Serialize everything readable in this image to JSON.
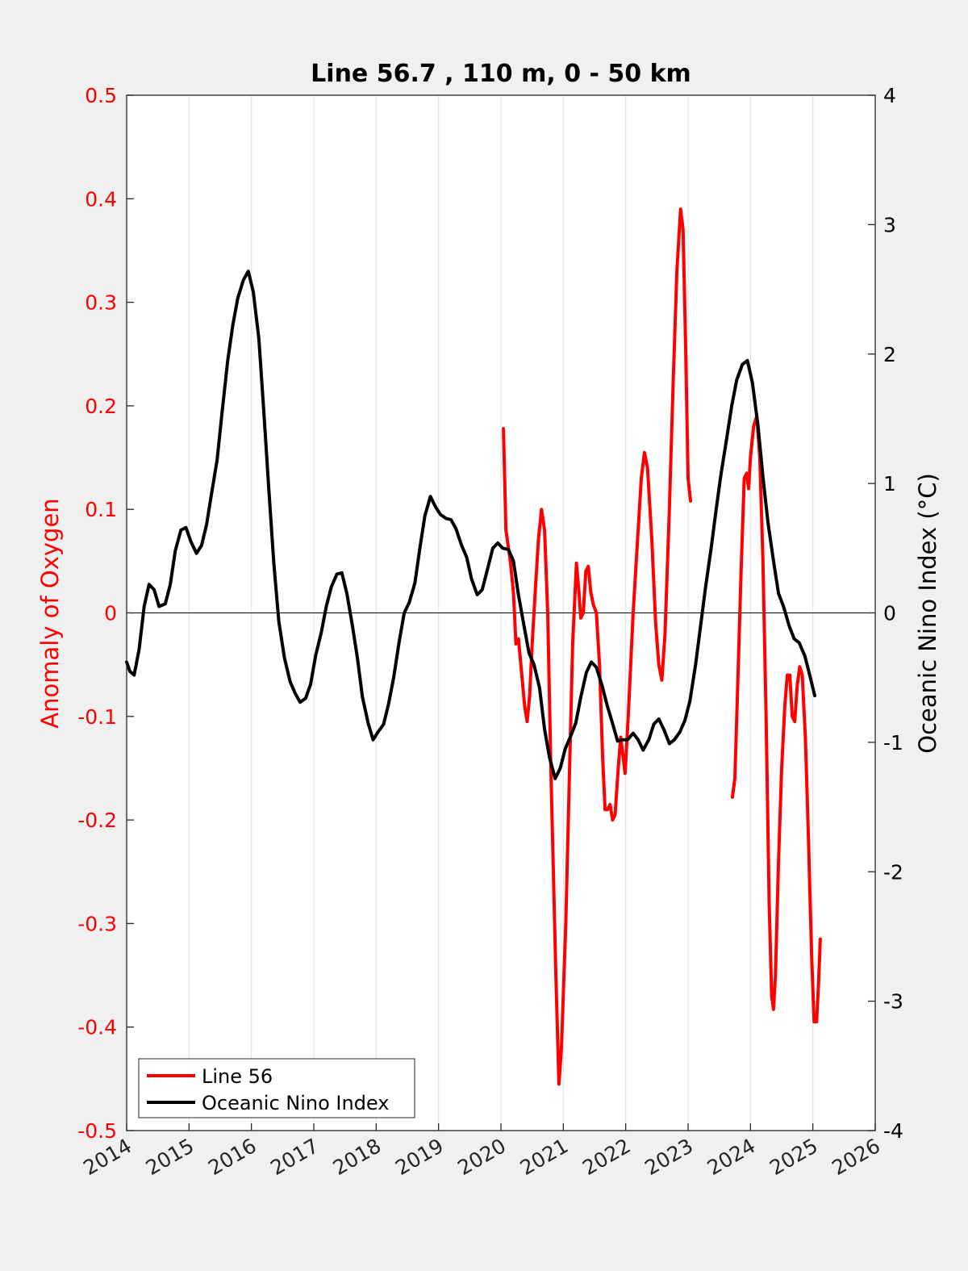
{
  "chart_data": {
    "type": "line",
    "title": "Line 56.7 , 110 m, 0 - 50 km",
    "ylabel_left": "Anomaly of Oxygen",
    "ylabel_right": "Oceanic Nino Index (°C)",
    "xlim": [
      2014,
      2026
    ],
    "ylim_left": [
      -0.5,
      0.5
    ],
    "ylim_right": [
      -4,
      4
    ],
    "x_ticks": [
      "2014",
      "2015",
      "2016",
      "2017",
      "2018",
      "2019",
      "2020",
      "2021",
      "2022",
      "2023",
      "2024",
      "2025",
      "2026"
    ],
    "y_left_ticks": [
      "-0.5",
      "-0.4",
      "-0.3",
      "-0.2",
      "-0.1",
      "0",
      "0.1",
      "0.2",
      "0.3",
      "0.4",
      "0.5"
    ],
    "y_right_ticks": [
      "-4",
      "-3",
      "-2",
      "-1",
      "0",
      "1",
      "2",
      "3",
      "4"
    ],
    "grid": "vertical",
    "legend_position": "bottom-left",
    "series": [
      {
        "name": "Line 56",
        "axis": "left",
        "color": "#ff0000",
        "segments": [
          [
            [
              2020.04,
              0.178
            ],
            [
              2020.08,
              0.08
            ],
            [
              2020.15,
              0.05
            ],
            [
              2020.2,
              0.02
            ],
            [
              2020.24,
              -0.03
            ],
            [
              2020.28,
              -0.025
            ],
            [
              2020.32,
              -0.05
            ],
            [
              2020.38,
              -0.09
            ],
            [
              2020.42,
              -0.105
            ],
            [
              2020.46,
              -0.08
            ],
            [
              2020.5,
              -0.03
            ],
            [
              2020.55,
              0.02
            ],
            [
              2020.6,
              0.07
            ],
            [
              2020.65,
              0.1
            ],
            [
              2020.7,
              0.08
            ],
            [
              2020.75,
              0
            ],
            [
              2020.8,
              -0.15
            ],
            [
              2020.88,
              -0.35
            ],
            [
              2020.93,
              -0.455
            ],
            [
              2020.97,
              -0.42
            ],
            [
              2021.04,
              -0.3
            ],
            [
              2021.1,
              -0.15
            ],
            [
              2021.15,
              -0.03
            ],
            [
              2021.21,
              0.048
            ],
            [
              2021.25,
              0.02
            ],
            [
              2021.28,
              -0.005
            ],
            [
              2021.32,
              0
            ],
            [
              2021.36,
              0.04
            ],
            [
              2021.4,
              0.045
            ],
            [
              2021.44,
              0.02
            ],
            [
              2021.48,
              0.008
            ],
            [
              2021.53,
              0
            ],
            [
              2021.58,
              -0.05
            ],
            [
              2021.63,
              -0.14
            ],
            [
              2021.67,
              -0.19
            ],
            [
              2021.71,
              -0.19
            ],
            [
              2021.75,
              -0.185
            ],
            [
              2021.79,
              -0.2
            ],
            [
              2021.83,
              -0.195
            ],
            [
              2021.88,
              -0.15
            ],
            [
              2021.92,
              -0.12
            ],
            [
              2021.96,
              -0.14
            ],
            [
              2021.99,
              -0.155
            ],
            [
              2022.04,
              -0.1
            ],
            [
              2022.12,
              0
            ],
            [
              2022.2,
              0.08
            ],
            [
              2022.25,
              0.13
            ],
            [
              2022.3,
              0.155
            ],
            [
              2022.35,
              0.14
            ],
            [
              2022.42,
              0.07
            ],
            [
              2022.48,
              -0.01
            ],
            [
              2022.53,
              -0.05
            ],
            [
              2022.58,
              -0.065
            ],
            [
              2022.63,
              -0.02
            ],
            [
              2022.7,
              0.1
            ],
            [
              2022.76,
              0.22
            ],
            [
              2022.82,
              0.33
            ],
            [
              2022.88,
              0.39
            ],
            [
              2022.92,
              0.37
            ],
            [
              2022.96,
              0.26
            ],
            [
              2023.0,
              0.13
            ],
            [
              2023.04,
              0.108
            ]
          ],
          [
            [
              2023.71,
              -0.178
            ],
            [
              2023.75,
              -0.16
            ],
            [
              2023.8,
              -0.06
            ],
            [
              2023.85,
              0.04
            ],
            [
              2023.9,
              0.13
            ],
            [
              2023.94,
              0.135
            ],
            [
              2023.97,
              0.12
            ],
            [
              2024.0,
              0.15
            ],
            [
              2024.05,
              0.18
            ],
            [
              2024.1,
              0.19
            ],
            [
              2024.15,
              0.15
            ],
            [
              2024.2,
              0.05
            ],
            [
              2024.25,
              -0.1
            ],
            [
              2024.3,
              -0.28
            ],
            [
              2024.34,
              -0.37
            ],
            [
              2024.37,
              -0.383
            ],
            [
              2024.4,
              -0.35
            ],
            [
              2024.45,
              -0.24
            ],
            [
              2024.5,
              -0.15
            ],
            [
              2024.55,
              -0.09
            ],
            [
              2024.59,
              -0.06
            ],
            [
              2024.63,
              -0.06
            ],
            [
              2024.67,
              -0.1
            ],
            [
              2024.71,
              -0.105
            ],
            [
              2024.75,
              -0.07
            ],
            [
              2024.79,
              -0.052
            ],
            [
              2024.83,
              -0.06
            ],
            [
              2024.88,
              -0.12
            ],
            [
              2024.93,
              -0.22
            ],
            [
              2024.98,
              -0.33
            ],
            [
              2025.02,
              -0.395
            ],
            [
              2025.06,
              -0.395
            ],
            [
              2025.09,
              -0.36
            ],
            [
              2025.12,
              -0.315
            ]
          ]
        ]
      },
      {
        "name": "Oceanic Nino Index",
        "axis": "right",
        "color": "#000000",
        "segments": [
          [
            [
              2014.0,
              -0.38
            ],
            [
              2014.05,
              -0.45
            ],
            [
              2014.12,
              -0.48
            ],
            [
              2014.2,
              -0.28
            ],
            [
              2014.28,
              0.05
            ],
            [
              2014.36,
              0.22
            ],
            [
              2014.44,
              0.18
            ],
            [
              2014.52,
              0.05
            ],
            [
              2014.62,
              0.07
            ],
            [
              2014.7,
              0.22
            ],
            [
              2014.78,
              0.48
            ],
            [
              2014.87,
              0.64
            ],
            [
              2014.95,
              0.66
            ],
            [
              2015.03,
              0.55
            ],
            [
              2015.12,
              0.46
            ],
            [
              2015.2,
              0.52
            ],
            [
              2015.28,
              0.68
            ],
            [
              2015.36,
              0.92
            ],
            [
              2015.45,
              1.18
            ],
            [
              2015.53,
              1.55
            ],
            [
              2015.62,
              1.95
            ],
            [
              2015.7,
              2.22
            ],
            [
              2015.78,
              2.43
            ],
            [
              2015.87,
              2.57
            ],
            [
              2015.95,
              2.64
            ],
            [
              2016.03,
              2.48
            ],
            [
              2016.12,
              2.12
            ],
            [
              2016.2,
              1.55
            ],
            [
              2016.28,
              0.95
            ],
            [
              2016.36,
              0.38
            ],
            [
              2016.44,
              -0.07
            ],
            [
              2016.53,
              -0.35
            ],
            [
              2016.62,
              -0.53
            ],
            [
              2016.7,
              -0.62
            ],
            [
              2016.78,
              -0.69
            ],
            [
              2016.87,
              -0.66
            ],
            [
              2016.95,
              -0.55
            ],
            [
              2017.03,
              -0.33
            ],
            [
              2017.12,
              -0.15
            ],
            [
              2017.2,
              0.05
            ],
            [
              2017.28,
              0.2
            ],
            [
              2017.37,
              0.3
            ],
            [
              2017.45,
              0.31
            ],
            [
              2017.53,
              0.15
            ],
            [
              2017.62,
              -0.1
            ],
            [
              2017.7,
              -0.35
            ],
            [
              2017.78,
              -0.65
            ],
            [
              2017.87,
              -0.85
            ],
            [
              2017.95,
              -0.98
            ],
            [
              2018.03,
              -0.92
            ],
            [
              2018.12,
              -0.86
            ],
            [
              2018.2,
              -0.7
            ],
            [
              2018.28,
              -0.5
            ],
            [
              2018.37,
              -0.22
            ],
            [
              2018.45,
              0.0
            ],
            [
              2018.53,
              0.08
            ],
            [
              2018.62,
              0.23
            ],
            [
              2018.7,
              0.5
            ],
            [
              2018.78,
              0.75
            ],
            [
              2018.87,
              0.9
            ],
            [
              2018.95,
              0.82
            ],
            [
              2019.03,
              0.76
            ],
            [
              2019.12,
              0.73
            ],
            [
              2019.2,
              0.72
            ],
            [
              2019.28,
              0.65
            ],
            [
              2019.37,
              0.52
            ],
            [
              2019.45,
              0.43
            ],
            [
              2019.53,
              0.26
            ],
            [
              2019.62,
              0.14
            ],
            [
              2019.7,
              0.18
            ],
            [
              2019.78,
              0.33
            ],
            [
              2019.87,
              0.5
            ],
            [
              2019.95,
              0.54
            ],
            [
              2020.03,
              0.5
            ],
            [
              2020.12,
              0.49
            ],
            [
              2020.2,
              0.4
            ],
            [
              2020.28,
              0.14
            ],
            [
              2020.37,
              -0.1
            ],
            [
              2020.45,
              -0.31
            ],
            [
              2020.53,
              -0.4
            ],
            [
              2020.62,
              -0.58
            ],
            [
              2020.7,
              -0.9
            ],
            [
              2020.78,
              -1.12
            ],
            [
              2020.87,
              -1.28
            ],
            [
              2020.95,
              -1.2
            ],
            [
              2021.03,
              -1.05
            ],
            [
              2021.12,
              -0.95
            ],
            [
              2021.2,
              -0.85
            ],
            [
              2021.28,
              -0.65
            ],
            [
              2021.37,
              -0.46
            ],
            [
              2021.45,
              -0.38
            ],
            [
              2021.53,
              -0.42
            ],
            [
              2021.62,
              -0.56
            ],
            [
              2021.7,
              -0.71
            ],
            [
              2021.78,
              -0.84
            ],
            [
              2021.87,
              -0.99
            ],
            [
              2021.95,
              -0.98
            ],
            [
              2022.03,
              -0.98
            ],
            [
              2022.12,
              -0.93
            ],
            [
              2022.2,
              -0.98
            ],
            [
              2022.28,
              -1.06
            ],
            [
              2022.37,
              -0.98
            ],
            [
              2022.45,
              -0.86
            ],
            [
              2022.53,
              -0.82
            ],
            [
              2022.62,
              -0.91
            ],
            [
              2022.7,
              -1.01
            ],
            [
              2022.78,
              -0.98
            ],
            [
              2022.87,
              -0.92
            ],
            [
              2022.95,
              -0.83
            ],
            [
              2023.03,
              -0.68
            ],
            [
              2023.12,
              -0.4
            ],
            [
              2023.2,
              -0.1
            ],
            [
              2023.28,
              0.2
            ],
            [
              2023.37,
              0.5
            ],
            [
              2023.45,
              0.8
            ],
            [
              2023.53,
              1.08
            ],
            [
              2023.62,
              1.35
            ],
            [
              2023.7,
              1.6
            ],
            [
              2023.78,
              1.8
            ],
            [
              2023.87,
              1.92
            ],
            [
              2023.95,
              1.95
            ],
            [
              2024.03,
              1.78
            ],
            [
              2024.12,
              1.45
            ],
            [
              2024.2,
              1.05
            ],
            [
              2024.28,
              0.7
            ],
            [
              2024.37,
              0.4
            ],
            [
              2024.45,
              0.15
            ],
            [
              2024.53,
              0.05
            ],
            [
              2024.62,
              -0.1
            ],
            [
              2024.7,
              -0.2
            ],
            [
              2024.78,
              -0.23
            ],
            [
              2024.87,
              -0.33
            ],
            [
              2024.95,
              -0.48
            ],
            [
              2025.03,
              -0.64
            ]
          ]
        ]
      }
    ]
  },
  "legend": {
    "items": [
      {
        "label": "Line 56",
        "color": "#ff0000"
      },
      {
        "label": "Oceanic Nino Index",
        "color": "#000000"
      }
    ]
  },
  "colors": {
    "left_axis": "#ff0000",
    "right_axis": "#000000",
    "background": "#f0f0f0",
    "plot_background": "#ffffff",
    "grid": "#e0e0e0"
  }
}
